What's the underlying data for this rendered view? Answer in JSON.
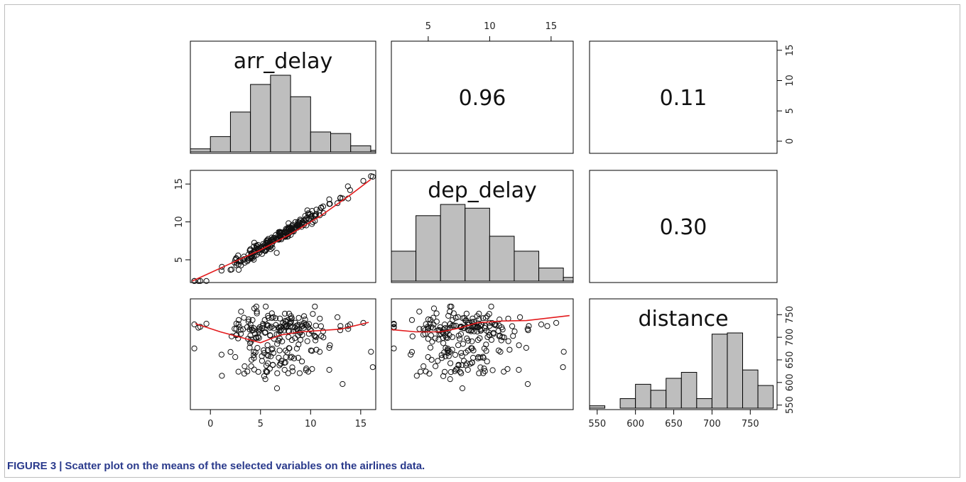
{
  "caption": {
    "label": "FIGURE 3",
    "separator": "|",
    "text": "Scatter plot on the means of the selected variables on the airlines data."
  },
  "colors": {
    "bar_fill": "#bebebe",
    "smooth_line": "#e31a1c",
    "caption_text": "#2a3a8c"
  },
  "chart_data": {
    "type": "scatter",
    "subtype": "pairs-matrix",
    "variables": [
      "arr_delay",
      "dep_delay",
      "distance"
    ],
    "correlations": [
      {
        "row": "arr_delay",
        "col": "dep_delay",
        "value": "0.96"
      },
      {
        "row": "arr_delay",
        "col": "distance",
        "value": "0.11"
      },
      {
        "row": "dep_delay",
        "col": "distance",
        "value": "0.30"
      }
    ],
    "axes": {
      "arr_delay": {
        "range": [
          -2,
          16.5
        ],
        "ticks": [
          0,
          5,
          10,
          15
        ]
      },
      "dep_delay": {
        "range": [
          2,
          16.8
        ],
        "ticks": [
          5,
          10,
          15
        ]
      },
      "distance": {
        "range": [
          540,
          785
        ],
        "ticks": [
          550,
          600,
          650,
          700,
          750
        ]
      }
    },
    "histograms": {
      "arr_delay": {
        "breaks": [
          -2,
          0,
          2,
          4,
          6,
          8,
          10,
          12,
          14,
          16,
          18
        ],
        "heights": [
          0.2,
          1.0,
          2.6,
          4.4,
          5.0,
          3.6,
          1.3,
          1.2,
          0.4,
          0.1
        ]
      },
      "dep_delay": {
        "breaks": [
          2,
          4,
          6,
          8,
          10,
          12,
          14,
          16,
          18
        ],
        "heights": [
          1.6,
          3.5,
          4.1,
          3.9,
          2.4,
          1.6,
          0.7,
          0.2
        ]
      },
      "distance": {
        "breaks": [
          540,
          560,
          580,
          600,
          620,
          640,
          660,
          680,
          700,
          720,
          740,
          760,
          780
        ],
        "heights": [
          0.2,
          0,
          0.8,
          2.0,
          1.5,
          2.5,
          3.0,
          0.8,
          6.2,
          6.3,
          3.2,
          1.9
        ]
      }
    },
    "smooth_arr_dep": [
      [
        -1.8,
        2.2
      ],
      [
        2,
        4.5
      ],
      [
        5,
        6.3
      ],
      [
        8,
        8.4
      ],
      [
        11,
        10.8
      ],
      [
        14,
        13.6
      ],
      [
        16,
        15.6
      ]
    ],
    "smooth_arr_dist": [
      [
        -1.5,
        730
      ],
      [
        1,
        712
      ],
      [
        3,
        700
      ],
      [
        5,
        688
      ],
      [
        7,
        705
      ],
      [
        9,
        712
      ],
      [
        11,
        715
      ],
      [
        13,
        718
      ],
      [
        15.8,
        733
      ]
    ],
    "smooth_dep_dist": [
      [
        2,
        717
      ],
      [
        4,
        712
      ],
      [
        6,
        712
      ],
      [
        7.5,
        720
      ],
      [
        9,
        732
      ],
      [
        11,
        736
      ],
      [
        13,
        737
      ],
      [
        16.5,
        748
      ]
    ]
  }
}
